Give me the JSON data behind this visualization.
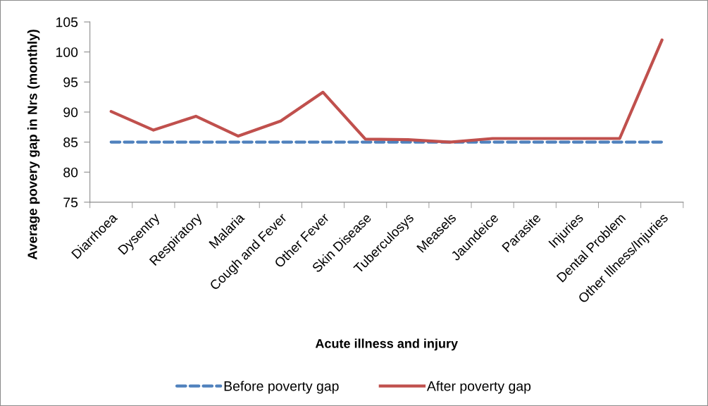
{
  "chart_data": {
    "type": "line",
    "xlabel": "Acute illness and injury",
    "ylabel": "Average povery gap in Nrs (monthly)",
    "categories": [
      "Diarrhoea",
      "Dysentry",
      "Respiratory",
      "Malaria",
      "Cough and Fever",
      "Other Fever",
      "Skin Disease",
      "Tuberculosys",
      "Measels",
      "Jaundeice",
      "Parasite",
      "Injuries",
      "Dental Problem",
      "Other Illness/Injuries"
    ],
    "series": [
      {
        "name": "Before poverty gap",
        "color": "#4f81bd",
        "line_style": "dashed",
        "values": [
          85,
          85,
          85,
          85,
          85,
          85,
          85,
          85,
          85,
          85,
          85,
          85,
          85,
          85
        ]
      },
      {
        "name": "After poverty gap",
        "color": "#c0504d",
        "line_style": "solid",
        "values": [
          90.1,
          87.0,
          89.3,
          86.0,
          88.5,
          93.3,
          85.5,
          85.4,
          85.0,
          85.6,
          85.6,
          85.6,
          85.6,
          102.0
        ]
      }
    ],
    "ylim": [
      75,
      105
    ],
    "yticks": [
      75,
      80,
      85,
      90,
      95,
      100,
      105
    ],
    "grid": false,
    "legend": "bottom",
    "marker": "none"
  }
}
